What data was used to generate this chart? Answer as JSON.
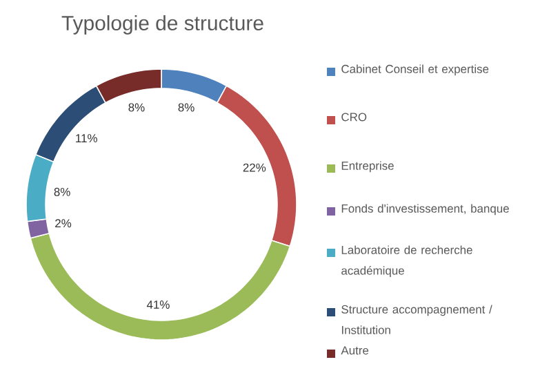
{
  "chart_data": {
    "type": "donut",
    "title": "Typologie de structure",
    "categories": [
      "Cabinet Conseil et expertise",
      "CRO",
      "Entreprise",
      "Fonds d'investissement, banque",
      "Laboratoire de recherche académique",
      "Structure accompagnement / Institution",
      "Autre"
    ],
    "values": [
      8,
      22,
      41,
      2,
      8,
      11,
      8
    ],
    "value_labels": [
      "8%",
      "22%",
      "41%",
      "2%",
      "8%",
      "11%",
      "8%"
    ],
    "colors": [
      "#4f81bd",
      "#c0504d",
      "#9bbb59",
      "#8064a2",
      "#4bacc6",
      "#2c4d75",
      "#772c2a"
    ],
    "legend": "right"
  }
}
